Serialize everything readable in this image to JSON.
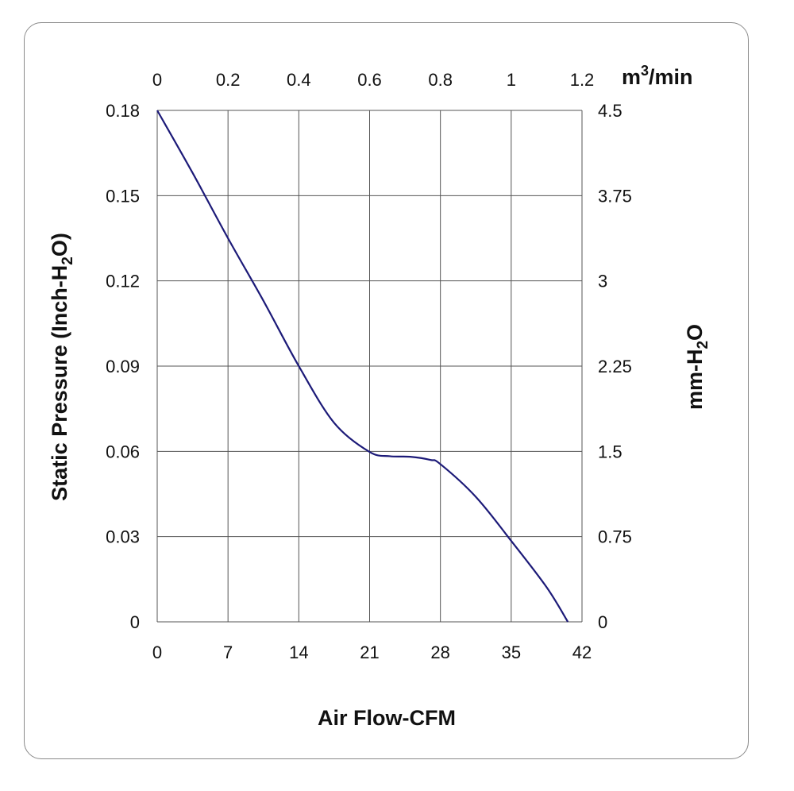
{
  "chart_data": {
    "type": "line",
    "xlabel": "Air Flow-CFM",
    "ylabel_parts": [
      "Static Pressure (Inch-H",
      "2",
      "O)"
    ],
    "y2label_parts": [
      "mm-H",
      "2",
      "O"
    ],
    "x2label_parts": [
      "m",
      "3",
      "/min"
    ],
    "xlim": [
      0,
      42
    ],
    "ylim": [
      0,
      0.18
    ],
    "x2lim": [
      0,
      1.2
    ],
    "y2lim": [
      0,
      4.5
    ],
    "xticks": [
      "0",
      "7",
      "14",
      "21",
      "28",
      "35",
      "42"
    ],
    "yticks": [
      "0",
      "0.03",
      "0.06",
      "0.09",
      "0.12",
      "0.15",
      "0.18"
    ],
    "x2ticks": [
      "0",
      "0.2",
      "0.4",
      "0.6",
      "0.8",
      "1",
      "1.2"
    ],
    "y2ticks": [
      "0",
      "0.75",
      "1.5",
      "2.25",
      "3",
      "3.75",
      "4.5"
    ],
    "grid": true,
    "series": [
      {
        "color": "#1c1a78",
        "x": [
          0,
          3.5,
          7,
          10.5,
          14,
          17.5,
          21,
          23,
          25,
          27,
          28,
          31.5,
          35,
          38.5,
          40.6
        ],
        "y": [
          0.18,
          0.158,
          0.135,
          0.113,
          0.09,
          0.07,
          0.0598,
          0.0583,
          0.0581,
          0.057,
          0.0555,
          0.044,
          0.0285,
          0.0122,
          0.0
        ]
      }
    ]
  }
}
